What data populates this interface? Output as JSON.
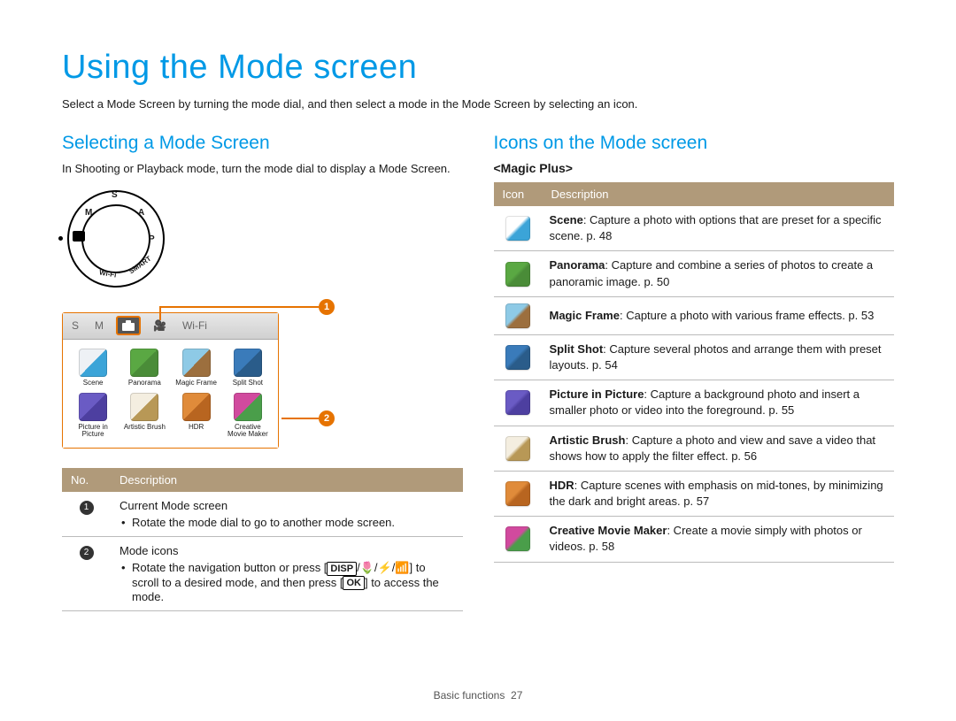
{
  "page": {
    "title": "Using the Mode screen",
    "intro": "Select a Mode Screen by turning the mode dial, and then select a mode in the Mode Screen by selecting an icon.",
    "footer_section": "Basic functions",
    "footer_page": "27"
  },
  "colors": {
    "accent_blue": "#0099e6",
    "callout_orange": "#e67300",
    "table_header": "#b09a7a"
  },
  "left": {
    "heading": "Selecting a Mode Screen",
    "body": "In Shooting or Playback mode, turn the mode dial to display a Mode Screen.",
    "dial_labels": [
      "S",
      "A",
      "P",
      "SMART",
      "Wi-Fi",
      "M"
    ],
    "tabs": {
      "s": "S",
      "m": "M",
      "video": "🎥",
      "wifi": "Wi-Fi"
    },
    "grid": [
      {
        "label": "Scene",
        "bg": "#eef1f5",
        "overlay": "#3ba4d8"
      },
      {
        "label": "Panorama",
        "bg": "#5aa843",
        "overlay": "#4a8c38"
      },
      {
        "label": "Magic Frame",
        "bg": "#8ecae6",
        "overlay": "#9c6f3e"
      },
      {
        "label": "Split Shot",
        "bg": "#3a7bba",
        "overlay": "#2a5c8a"
      },
      {
        "label": "Picture in Picture",
        "bg": "#6a5bc4",
        "overlay": "#4d3fa0"
      },
      {
        "label": "Artistic Brush",
        "bg": "#f4eee0",
        "overlay": "#b89856"
      },
      {
        "label": "HDR",
        "bg": "#e08b3a",
        "overlay": "#b86520"
      },
      {
        "label": "Creative Movie Maker",
        "bg": "#d14a9e",
        "overlay": "#4a9e4a"
      }
    ],
    "table": {
      "headers": [
        "No.",
        "Description"
      ],
      "rows": [
        {
          "num": "1",
          "title": "Current Mode screen",
          "bullets": [
            "Rotate the mode dial to go to another mode screen."
          ]
        },
        {
          "num": "2",
          "title": "Mode icons",
          "bullets": [
            "Rotate the navigation button or press [DISP/🌷/⚡/📶] to scroll to a desired mode, and then press [OK] to access the mode."
          ]
        }
      ]
    }
  },
  "right": {
    "heading": "Icons on the Mode screen",
    "sub": "<Magic Plus>",
    "headers": [
      "Icon",
      "Description"
    ],
    "rows": [
      {
        "bg": "#ffffff",
        "fg": "#3ba4d8",
        "name": "Scene",
        "desc": ": Capture a photo with options that are preset for a specific scene. p. 48"
      },
      {
        "bg": "#5aa843",
        "fg": "#4a8c38",
        "name": "Panorama",
        "desc": ": Capture and combine a series of photos to create a panoramic image. p. 50"
      },
      {
        "bg": "#8ecae6",
        "fg": "#9c6f3e",
        "name": "Magic Frame",
        "desc": ": Capture a photo with various frame effects. p. 53"
      },
      {
        "bg": "#3a7bba",
        "fg": "#2a5c8a",
        "name": "Split Shot",
        "desc": ": Capture several photos and arrange them with preset layouts. p. 54"
      },
      {
        "bg": "#6a5bc4",
        "fg": "#4d3fa0",
        "name": "Picture in Picture",
        "desc": ": Capture a background photo and insert a smaller photo or video into the foreground. p. 55"
      },
      {
        "bg": "#f4eee0",
        "fg": "#b89856",
        "name": "Artistic Brush",
        "desc": ": Capture a photo and view and save a video that shows how to apply the filter effect. p. 56"
      },
      {
        "bg": "#e08b3a",
        "fg": "#b86520",
        "name": "HDR",
        "desc": ": Capture scenes with emphasis on mid-tones, by minimizing the dark and bright areas. p. 57"
      },
      {
        "bg": "#d14a9e",
        "fg": "#4a9e4a",
        "name": "Creative Movie Maker",
        "desc": ": Create a movie simply with photos or videos. p. 58"
      }
    ]
  }
}
